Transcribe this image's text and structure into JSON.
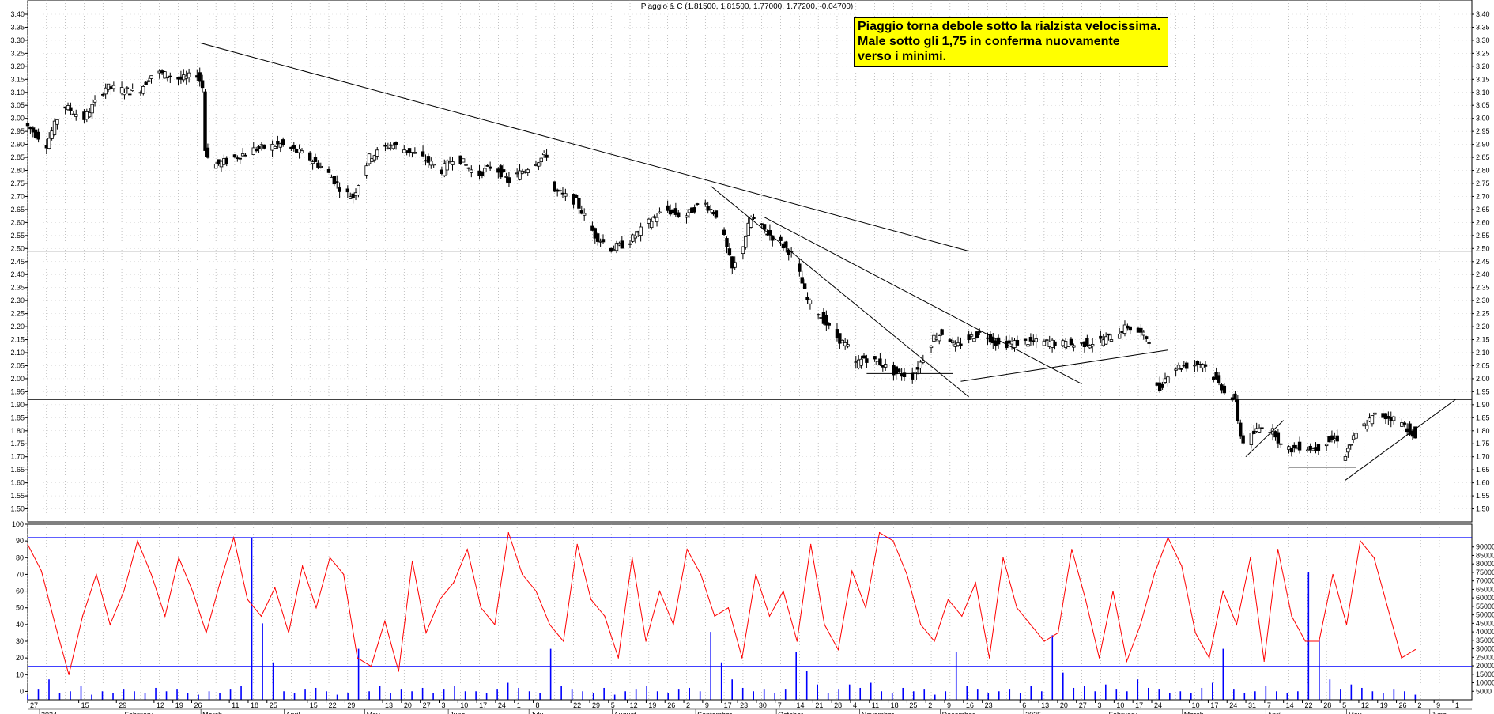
{
  "header": "Piaggio & C (1.81500, 1.81500, 1.77000, 1.77200, -0.04700)",
  "annotation": [
    "Piaggio torna debole sotto la rialzista velocissima.",
    "Male sotto gli 1,75 in conferma nuovamente",
    "verso i minimi."
  ],
  "colors": {
    "note_bg": "#ffff00",
    "oscillator": "#ff0000",
    "volume": "#0000ff",
    "level_lines": "#0000ff",
    "candles": "#000000",
    "grid": "#999999"
  },
  "chart_data": [
    {
      "type": "candlestick",
      "title": "Piaggio & C",
      "ylim": [
        1.45,
        3.4
      ],
      "y_ticks": [
        "3.40",
        "3.35",
        "3.30",
        "3.25",
        "3.20",
        "3.15",
        "3.10",
        "3.05",
        "3.00",
        "2.95",
        "2.90",
        "2.85",
        "2.80",
        "2.75",
        "2.70",
        "2.65",
        "2.60",
        "2.55",
        "2.50",
        "2.45",
        "2.40",
        "2.35",
        "2.30",
        "2.25",
        "2.20",
        "2.15",
        "2.10",
        "2.05",
        "2.00",
        "1.95",
        "1.90",
        "1.85",
        "1.80",
        "1.75",
        "1.70",
        "1.65",
        "1.60",
        "1.55",
        "1.50"
      ],
      "x_range_days": [
        0,
        530
      ],
      "x_day_ticks": [
        {
          "d": 0,
          "label": "27"
        },
        {
          "d": 19,
          "label": "15"
        },
        {
          "d": 33,
          "label": "29"
        },
        {
          "d": 47,
          "label": "12"
        },
        {
          "d": 54,
          "label": "19"
        },
        {
          "d": 61,
          "label": "26"
        },
        {
          "d": 75,
          "label": "11"
        },
        {
          "d": 82,
          "label": "18"
        },
        {
          "d": 89,
          "label": "25"
        },
        {
          "d": 104,
          "label": "15"
        },
        {
          "d": 111,
          "label": "22"
        },
        {
          "d": 118,
          "label": "29"
        },
        {
          "d": 132,
          "label": "13"
        },
        {
          "d": 139,
          "label": "20"
        },
        {
          "d": 146,
          "label": "27"
        },
        {
          "d": 153,
          "label": "3"
        },
        {
          "d": 160,
          "label": "10"
        },
        {
          "d": 167,
          "label": "17"
        },
        {
          "d": 174,
          "label": "24"
        },
        {
          "d": 181,
          "label": "1"
        },
        {
          "d": 188,
          "label": "8"
        },
        {
          "d": 202,
          "label": "22"
        },
        {
          "d": 209,
          "label": "29"
        },
        {
          "d": 216,
          "label": "5"
        },
        {
          "d": 223,
          "label": "12"
        },
        {
          "d": 230,
          "label": "19"
        },
        {
          "d": 237,
          "label": "26"
        },
        {
          "d": 244,
          "label": "2"
        },
        {
          "d": 251,
          "label": "9"
        },
        {
          "d": 258,
          "label": "17"
        },
        {
          "d": 264,
          "label": "23"
        },
        {
          "d": 271,
          "label": "30"
        },
        {
          "d": 278,
          "label": "7"
        },
        {
          "d": 285,
          "label": "14"
        },
        {
          "d": 292,
          "label": "21"
        },
        {
          "d": 299,
          "label": "28"
        },
        {
          "d": 306,
          "label": "4"
        },
        {
          "d": 313,
          "label": "11"
        },
        {
          "d": 320,
          "label": "18"
        },
        {
          "d": 327,
          "label": "25"
        },
        {
          "d": 334,
          "label": "2"
        },
        {
          "d": 341,
          "label": "9"
        },
        {
          "d": 348,
          "label": "16"
        },
        {
          "d": 355,
          "label": "23"
        },
        {
          "d": 369,
          "label": "6"
        },
        {
          "d": 376,
          "label": "13"
        },
        {
          "d": 383,
          "label": "20"
        },
        {
          "d": 390,
          "label": "27"
        },
        {
          "d": 397,
          "label": "3"
        },
        {
          "d": 404,
          "label": "10"
        },
        {
          "d": 411,
          "label": "17"
        },
        {
          "d": 418,
          "label": "24"
        },
        {
          "d": 432,
          "label": "10"
        },
        {
          "d": 439,
          "label": "17"
        },
        {
          "d": 446,
          "label": "24"
        },
        {
          "d": 453,
          "label": "31"
        },
        {
          "d": 460,
          "label": "7"
        },
        {
          "d": 467,
          "label": "14"
        },
        {
          "d": 474,
          "label": "22"
        },
        {
          "d": 481,
          "label": "28"
        },
        {
          "d": 488,
          "label": "5"
        },
        {
          "d": 495,
          "label": "12"
        },
        {
          "d": 502,
          "label": "19"
        },
        {
          "d": 509,
          "label": "26"
        },
        {
          "d": 516,
          "label": "2"
        },
        {
          "d": 523,
          "label": "9"
        },
        {
          "d": 530,
          "label": "1"
        }
      ],
      "x_month_ticks": [
        {
          "d": 5,
          "label": "2024"
        },
        {
          "d": 36,
          "label": "February"
        },
        {
          "d": 65,
          "label": "March"
        },
        {
          "d": 96,
          "label": "April"
        },
        {
          "d": 126,
          "label": "May"
        },
        {
          "d": 157,
          "label": "June"
        },
        {
          "d": 187,
          "label": "July"
        },
        {
          "d": 218,
          "label": "August"
        },
        {
          "d": 249,
          "label": "September"
        },
        {
          "d": 279,
          "label": "October"
        },
        {
          "d": 310,
          "label": "November"
        },
        {
          "d": 340,
          "label": "December"
        },
        {
          "d": 371,
          "label": "2025"
        },
        {
          "d": 402,
          "label": "February"
        },
        {
          "d": 430,
          "label": "March"
        },
        {
          "d": 461,
          "label": "April"
        },
        {
          "d": 491,
          "label": "May"
        },
        {
          "d": 522,
          "label": "June"
        }
      ],
      "anchors": [
        [
          0,
          2.98
        ],
        [
          8,
          2.9
        ],
        [
          14,
          3.05
        ],
        [
          22,
          3.0
        ],
        [
          30,
          3.12
        ],
        [
          42,
          3.1
        ],
        [
          48,
          3.18
        ],
        [
          58,
          3.15
        ],
        [
          64,
          3.17
        ],
        [
          66,
          3.12
        ],
        [
          67,
          2.88
        ],
        [
          70,
          2.82
        ],
        [
          76,
          2.84
        ],
        [
          85,
          2.88
        ],
        [
          95,
          2.9
        ],
        [
          104,
          2.86
        ],
        [
          112,
          2.8
        ],
        [
          118,
          2.72
        ],
        [
          122,
          2.7
        ],
        [
          128,
          2.85
        ],
        [
          136,
          2.9
        ],
        [
          146,
          2.86
        ],
        [
          155,
          2.8
        ],
        [
          160,
          2.86
        ],
        [
          168,
          2.78
        ],
        [
          174,
          2.82
        ],
        [
          180,
          2.76
        ],
        [
          188,
          2.82
        ],
        [
          194,
          2.86
        ],
        [
          197,
          2.72
        ],
        [
          205,
          2.68
        ],
        [
          212,
          2.55
        ],
        [
          218,
          2.5
        ],
        [
          224,
          2.52
        ],
        [
          232,
          2.6
        ],
        [
          238,
          2.65
        ],
        [
          245,
          2.62
        ],
        [
          252,
          2.68
        ],
        [
          258,
          2.62
        ],
        [
          261,
          2.5
        ],
        [
          263,
          2.42
        ],
        [
          266,
          2.48
        ],
        [
          270,
          2.62
        ],
        [
          276,
          2.56
        ],
        [
          281,
          2.52
        ],
        [
          285,
          2.48
        ],
        [
          288,
          2.4
        ],
        [
          291,
          2.3
        ],
        [
          296,
          2.24
        ],
        [
          300,
          2.18
        ],
        [
          306,
          2.12
        ],
        [
          308,
          2.05
        ],
        [
          312,
          2.08
        ],
        [
          318,
          2.06
        ],
        [
          324,
          2.02
        ],
        [
          330,
          2.01
        ],
        [
          334,
          2.08
        ],
        [
          338,
          2.16
        ],
        [
          342,
          2.18
        ],
        [
          346,
          2.12
        ],
        [
          350,
          2.15
        ],
        [
          356,
          2.18
        ],
        [
          362,
          2.13
        ],
        [
          370,
          2.14
        ],
        [
          380,
          2.14
        ],
        [
          390,
          2.13
        ],
        [
          398,
          2.14
        ],
        [
          404,
          2.16
        ],
        [
          410,
          2.2
        ],
        [
          414,
          2.18
        ],
        [
          418,
          2.15
        ],
        [
          420,
          1.97
        ],
        [
          422,
          1.96
        ],
        [
          426,
          2.04
        ],
        [
          432,
          2.05
        ],
        [
          438,
          2.06
        ],
        [
          444,
          1.98
        ],
        [
          450,
          1.91
        ],
        [
          452,
          1.78
        ],
        [
          454,
          1.74
        ],
        [
          456,
          1.78
        ],
        [
          460,
          1.82
        ],
        [
          465,
          1.79
        ],
        [
          468,
          1.72
        ],
        [
          474,
          1.74
        ],
        [
          480,
          1.73
        ],
        [
          484,
          1.76
        ],
        [
          488,
          1.77
        ],
        [
          490,
          1.69
        ],
        [
          494,
          1.77
        ],
        [
          498,
          1.82
        ],
        [
          502,
          1.86
        ],
        [
          508,
          1.85
        ],
        [
          512,
          1.83
        ],
        [
          515,
          1.8
        ],
        [
          516,
          1.77
        ]
      ],
      "last_candle": {
        "open": 1.815,
        "high": 1.815,
        "low": 1.77,
        "close": 1.772,
        "change": -0.047
      },
      "horizontal_lines": [
        2.49,
        1.92
      ],
      "trendlines": [
        [
          [
            64,
            3.29
          ],
          [
            350,
            2.49
          ]
        ],
        [
          [
            254,
            2.74
          ],
          [
            350,
            1.93
          ]
        ],
        [
          [
            274,
            2.62
          ],
          [
            392,
            1.98
          ]
        ],
        [
          [
            312,
            2.02
          ],
          [
            344,
            2.02
          ]
        ],
        [
          [
            347,
            1.99
          ],
          [
            424,
            2.11
          ]
        ],
        [
          [
            453,
            1.7
          ],
          [
            467,
            1.84
          ]
        ],
        [
          [
            469,
            1.66
          ],
          [
            494,
            1.66
          ]
        ],
        [
          [
            490,
            1.61
          ],
          [
            531,
            1.92
          ]
        ]
      ]
    },
    {
      "type": "line",
      "name": "Oscillator",
      "ylim": [
        -5,
        100
      ],
      "y_ticks": [
        0,
        10,
        20,
        30,
        40,
        50,
        60,
        70,
        80,
        90,
        100
      ],
      "levels": [
        92,
        15
      ],
      "values": [
        88,
        72,
        40,
        10,
        45,
        70,
        40,
        60,
        90,
        70,
        45,
        80,
        60,
        35,
        65,
        92,
        55,
        45,
        62,
        35,
        75,
        50,
        80,
        70,
        20,
        15,
        42,
        12,
        78,
        35,
        55,
        65,
        85,
        50,
        40,
        95,
        70,
        60,
        40,
        30,
        88,
        55,
        45,
        20,
        80,
        30,
        60,
        40,
        85,
        70,
        45,
        50,
        20,
        70,
        45,
        60,
        30,
        88,
        40,
        25,
        72,
        50,
        95,
        90,
        70,
        40,
        30,
        55,
        45,
        65,
        20,
        80,
        50,
        40,
        30,
        35,
        85,
        55,
        20,
        60,
        18,
        40,
        70,
        92,
        75,
        35,
        20,
        60,
        40,
        80,
        18,
        85,
        45,
        30,
        30,
        70,
        40,
        90,
        80,
        50,
        20,
        25
      ]
    },
    {
      "type": "bar",
      "name": "Volume",
      "ylim": [
        0,
        95000
      ],
      "y_ticks": [
        90000,
        85000,
        80000,
        75000,
        70000,
        65000,
        60000,
        55000,
        50000,
        45000,
        40000,
        35000,
        30000,
        25000,
        20000,
        15000,
        10000,
        5000
      ],
      "values": [
        3000,
        6000,
        12000,
        4000,
        5000,
        8000,
        3000,
        5000,
        4000,
        6000,
        5000,
        4000,
        7000,
        5000,
        6000,
        4000,
        3000,
        5000,
        4000,
        6000,
        8000,
        95000,
        45000,
        22000,
        5000,
        4000,
        6000,
        7000,
        5000,
        3000,
        4000,
        30000,
        5000,
        8000,
        4000,
        6000,
        5000,
        7000,
        4000,
        6000,
        8000,
        5000,
        5000,
        4000,
        6000,
        10000,
        7000,
        5000,
        4000,
        30000,
        8000,
        6000,
        5000,
        4000,
        7000,
        3000,
        5000,
        6000,
        8000,
        5000,
        4000,
        6000,
        7000,
        5000,
        40000,
        22000,
        12000,
        7000,
        5000,
        6000,
        4000,
        6000,
        28000,
        17000,
        9000,
        4000,
        6000,
        9000,
        7000,
        10000,
        5000,
        4000,
        7000,
        5000,
        6000,
        3000,
        5000,
        28000,
        8000,
        6000,
        4000,
        5000,
        6000,
        4000,
        8000,
        5000,
        38000,
        16000,
        7000,
        8000,
        5000,
        9000,
        6000,
        5000,
        12000,
        7000,
        6000,
        4000,
        5000,
        4000,
        7000,
        10000,
        30000,
        6000,
        4000,
        5000,
        8000,
        5000,
        4000,
        5000,
        75000,
        35000,
        12000,
        6000,
        9000,
        7000,
        5000,
        4000,
        6000,
        5000,
        3000
      ]
    }
  ]
}
